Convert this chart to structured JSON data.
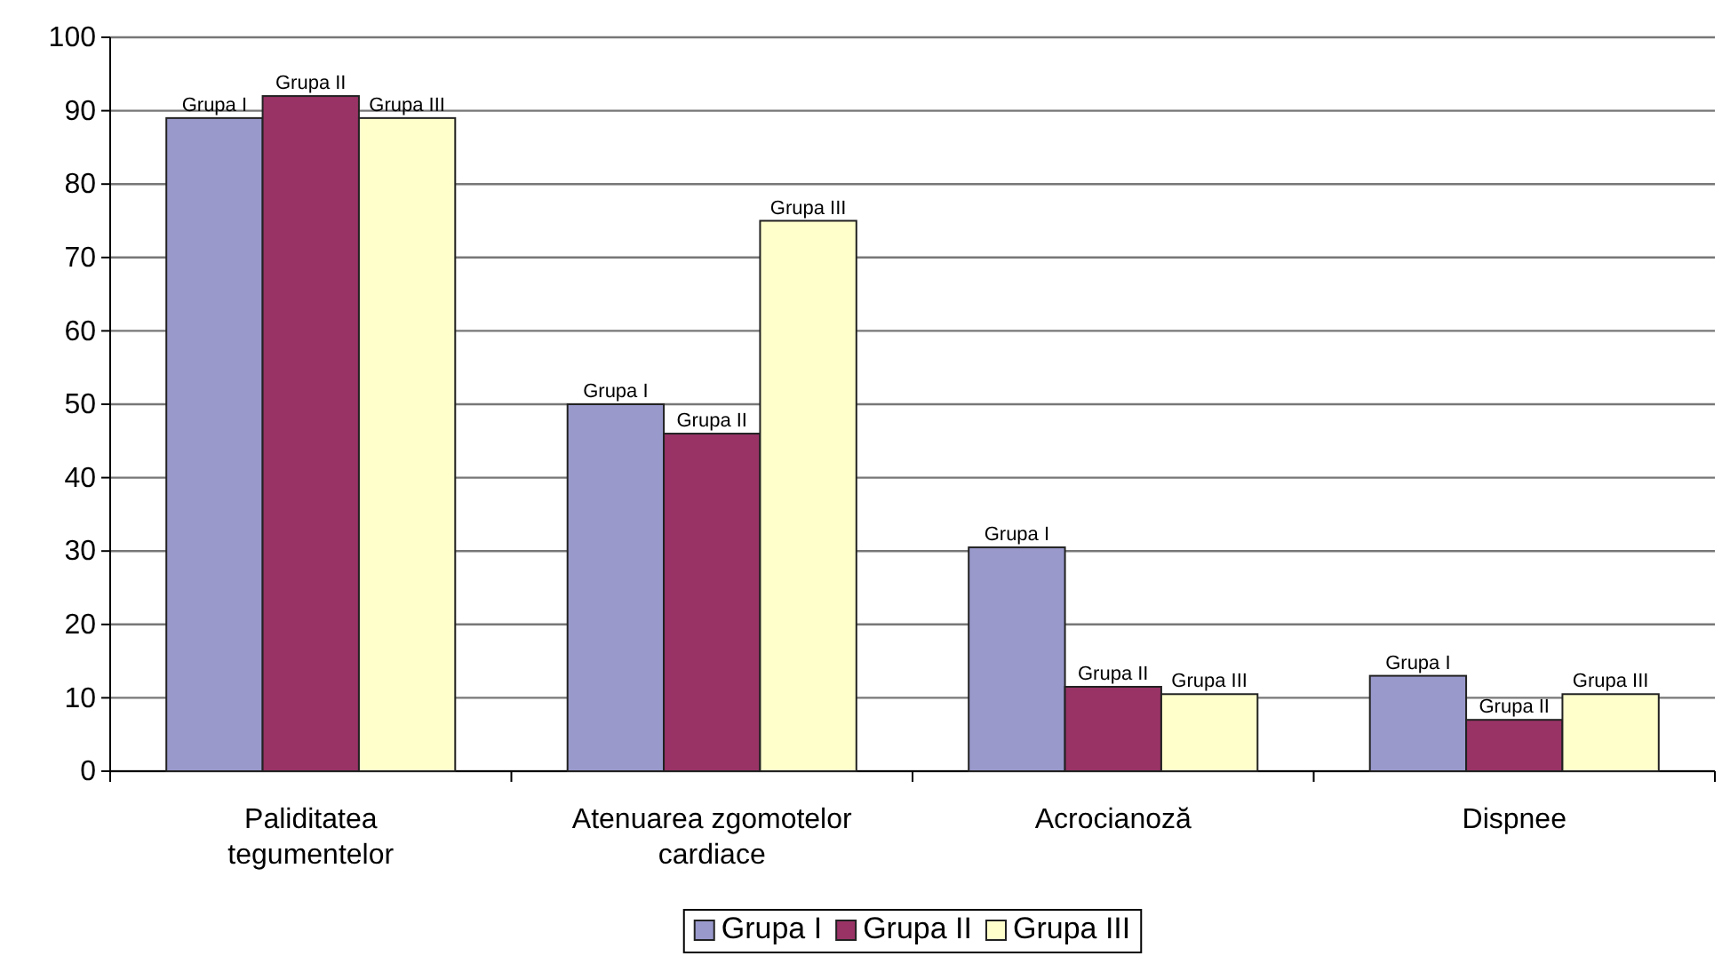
{
  "chart_data": {
    "type": "bar",
    "categories": [
      "Paliditatea tegumentelor",
      "Atenuarea zgomotelor cardiace",
      "Acrocianoză",
      "Dispnee"
    ],
    "series": [
      {
        "name": "Grupa I",
        "color": "#9999cc",
        "values": [
          89,
          50,
          30.5,
          13
        ],
        "value_labels": [
          "Grupa I",
          "Grupa I",
          "Grupa I",
          "Grupa I"
        ]
      },
      {
        "name": "Grupa II",
        "color": "#993366",
        "values": [
          92,
          46,
          11.5,
          7
        ],
        "value_labels": [
          "Grupa II",
          "Grupa II",
          "Grupa II",
          "Grupa II"
        ]
      },
      {
        "name": "Grupa III",
        "color": "#ffffcc",
        "values": [
          89,
          75,
          10.5,
          10.5
        ],
        "value_labels": [
          "Grupa III",
          "Grupa III",
          "Grupa III",
          "Grupa III"
        ]
      }
    ],
    "ylim": [
      0,
      100
    ],
    "yticks": [
      0,
      10,
      20,
      30,
      40,
      50,
      60,
      70,
      80,
      90,
      100
    ],
    "grid": "y",
    "legend": "bottom"
  }
}
